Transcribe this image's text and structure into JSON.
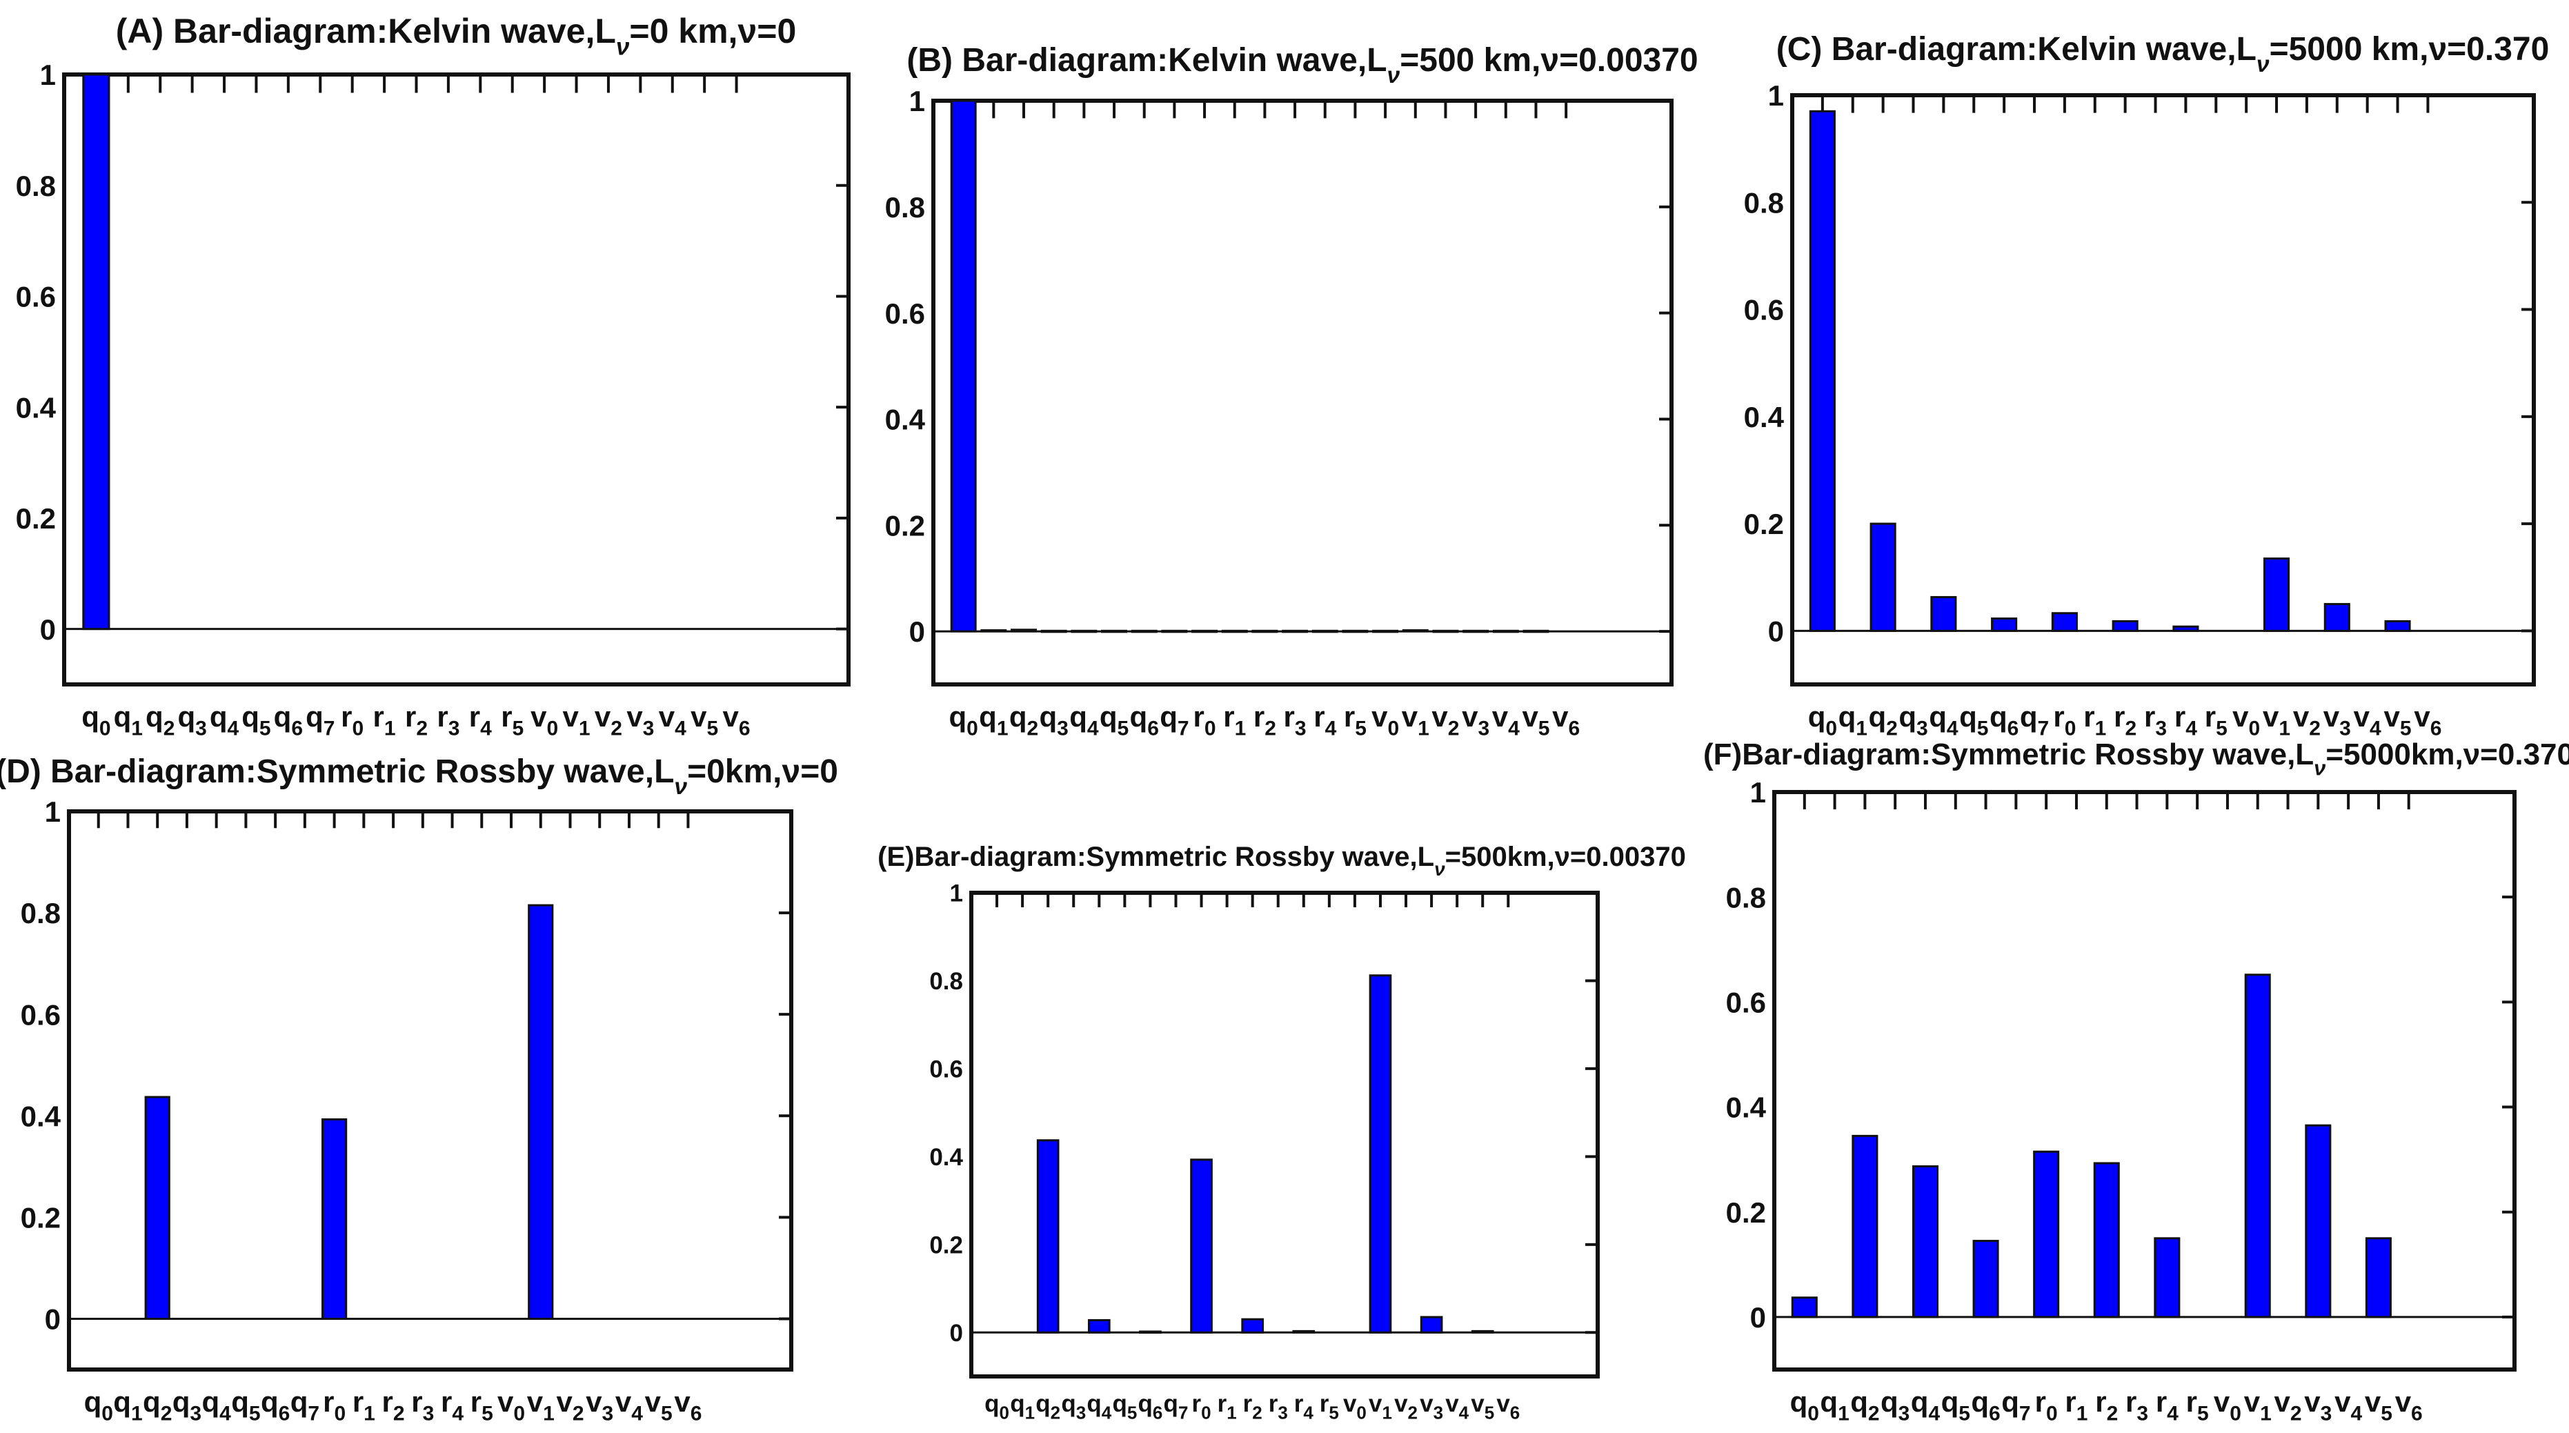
{
  "figure": {
    "bar_color": "#0000ff",
    "categories": [
      {
        "b": "q",
        "s": "0"
      },
      {
        "b": "q",
        "s": "1"
      },
      {
        "b": "q",
        "s": "2"
      },
      {
        "b": "q",
        "s": "3"
      },
      {
        "b": "q",
        "s": "4"
      },
      {
        "b": "q",
        "s": "5"
      },
      {
        "b": "q",
        "s": "6"
      },
      {
        "b": "q",
        "s": "7"
      },
      {
        "b": "r",
        "s": "0"
      },
      {
        "b": "r",
        "s": "1"
      },
      {
        "b": "r",
        "s": "2"
      },
      {
        "b": "r",
        "s": "3"
      },
      {
        "b": "r",
        "s": "4"
      },
      {
        "b": "r",
        "s": "5"
      },
      {
        "b": "v",
        "s": "0"
      },
      {
        "b": "v",
        "s": "1"
      },
      {
        "b": "v",
        "s": "2"
      },
      {
        "b": "v",
        "s": "3"
      },
      {
        "b": "v",
        "s": "4"
      },
      {
        "b": "v",
        "s": "5"
      },
      {
        "b": "v",
        "s": "6"
      }
    ],
    "yticks": [
      "0",
      "0.2",
      "0.4",
      "0.6",
      "0.8",
      "1"
    ]
  },
  "chart_data": [
    {
      "type": "bar",
      "title": {
        "prefix": "(A) Bar-diagram:Kelvin wave,L",
        "sub": "ν",
        "suffix": "=0 km,ν=0"
      },
      "categories": [
        "q0",
        "q1",
        "q2",
        "q3",
        "q4",
        "q5",
        "q6",
        "q7",
        "r0",
        "r1",
        "r2",
        "r3",
        "r4",
        "r5",
        "v0",
        "v1",
        "v2",
        "v3",
        "v4",
        "v5",
        "v6"
      ],
      "values": [
        1,
        0,
        0,
        0,
        0,
        0,
        0,
        0,
        0,
        0,
        0,
        0,
        0,
        0,
        0,
        0,
        0,
        0,
        0,
        0,
        0
      ],
      "ylim": [
        -0.1,
        1
      ]
    },
    {
      "type": "bar",
      "title": {
        "prefix": "(B) Bar-diagram:Kelvin wave,L",
        "sub": "ν",
        "suffix": "=500 km,ν=0.00370"
      },
      "categories": [
        "q0",
        "q1",
        "q2",
        "q3",
        "q4",
        "q5",
        "q6",
        "q7",
        "r0",
        "r1",
        "r2",
        "r3",
        "r4",
        "r5",
        "v0",
        "v1",
        "v2",
        "v3",
        "v4",
        "v5",
        "v6"
      ],
      "values": [
        1,
        0.002,
        0.003,
        0.001,
        0.001,
        0.001,
        0.001,
        0.001,
        0.001,
        0.001,
        0.001,
        0.001,
        0.001,
        0.001,
        0.001,
        0.002,
        0.001,
        0.001,
        0.001,
        0.001,
        0
      ],
      "ylim": [
        -0.1,
        1
      ]
    },
    {
      "type": "bar",
      "title": {
        "prefix": "(C) Bar-diagram:Kelvin wave,L",
        "sub": "ν",
        "suffix": "=5000 km,ν=0.370"
      },
      "categories": [
        "q0",
        "q1",
        "q2",
        "q3",
        "q4",
        "q5",
        "q6",
        "q7",
        "r0",
        "r1",
        "r2",
        "r3",
        "r4",
        "r5",
        "v0",
        "v1",
        "v2",
        "v3",
        "v4",
        "v5",
        "v6"
      ],
      "values": [
        0.97,
        0,
        0.2,
        0,
        0.063,
        0,
        0.023,
        0,
        0.033,
        0,
        0.018,
        0,
        0.008,
        0,
        0,
        0.135,
        0,
        0.05,
        0,
        0.018,
        0
      ],
      "ylim": [
        -0.1,
        1
      ]
    },
    {
      "type": "bar",
      "title": {
        "prefix": "(D) Bar-diagram:Symmetric Rossby wave,L",
        "sub": "ν",
        "suffix": "=0km,ν=0"
      },
      "categories": [
        "q0",
        "q1",
        "q2",
        "q3",
        "q4",
        "q5",
        "q6",
        "q7",
        "r0",
        "r1",
        "r2",
        "r3",
        "r4",
        "r5",
        "v0",
        "v1",
        "v2",
        "v3",
        "v4",
        "v5",
        "v6"
      ],
      "values": [
        0,
        0,
        0.437,
        0,
        0,
        0,
        0,
        0,
        0.393,
        0,
        0,
        0,
        0,
        0,
        0,
        0.815,
        0,
        0,
        0,
        0,
        0
      ],
      "ylim": [
        -0.1,
        1
      ]
    },
    {
      "type": "bar",
      "title": {
        "prefix": "(E)Bar-diagram:Symmetric Rossby wave,L",
        "sub": "ν",
        "suffix": "=500km,ν=0.00370"
      },
      "categories": [
        "q0",
        "q1",
        "q2",
        "q3",
        "q4",
        "q5",
        "q6",
        "q7",
        "r0",
        "r1",
        "r2",
        "r3",
        "r4",
        "r5",
        "v0",
        "v1",
        "v2",
        "v3",
        "v4",
        "v5",
        "v6"
      ],
      "values": [
        0,
        0,
        0.437,
        0,
        0.028,
        0,
        0.002,
        0,
        0.393,
        0,
        0.03,
        0,
        0.003,
        0,
        0,
        0.812,
        0,
        0.035,
        0,
        0.003,
        0
      ],
      "ylim": [
        -0.1,
        1
      ]
    },
    {
      "type": "bar",
      "title": {
        "prefix": "(F)Bar-diagram:Symmetric Rossby wave,L",
        "sub": "ν",
        "suffix": "=5000km,ν=0.370"
      },
      "categories": [
        "q0",
        "q1",
        "q2",
        "q3",
        "q4",
        "q5",
        "q6",
        "q7",
        "r0",
        "r1",
        "r2",
        "r3",
        "r4",
        "r5",
        "v0",
        "v1",
        "v2",
        "v3",
        "v4",
        "v5",
        "v6"
      ],
      "values": [
        0.037,
        0,
        0.345,
        0,
        0.287,
        0,
        0.145,
        0,
        0.315,
        0,
        0.293,
        0,
        0.15,
        0,
        0,
        0.652,
        0,
        0.365,
        0,
        0.15,
        0
      ],
      "ylim": [
        -0.1,
        1
      ]
    }
  ]
}
